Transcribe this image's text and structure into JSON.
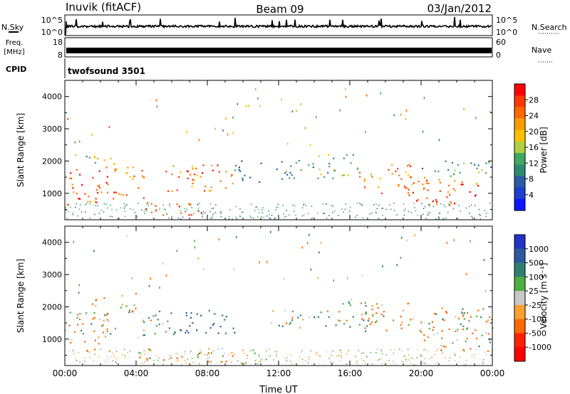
{
  "header": {
    "station": "Inuvik (fitACF)",
    "beam": "Beam 09",
    "date": "03/Jan/2012"
  },
  "strips": {
    "nsky_label": "N.Sky",
    "nsearch_label": "N.Search",
    "nsky_ticks": [
      "10^5",
      "10^0"
    ],
    "nsearch_ticks": [
      "10^5",
      "10^0"
    ],
    "freq_label": "Freq.",
    "freq_unit": "[MHz]",
    "freq_ticks": [
      "18",
      "8"
    ],
    "nave_label": "Nave",
    "nave_ticks": [
      "60",
      "0"
    ],
    "cpid_label": "CPID",
    "cpid_value": "twofsound 3501"
  },
  "power_colorbar": {
    "title": "Power [dB]",
    "ticks": [
      "28",
      "24",
      "20",
      "16",
      "12",
      "8",
      "4"
    ],
    "colors": [
      "#ff0000",
      "#ff3800",
      "#ff6a00",
      "#ff9a00",
      "#ffc000",
      "#b0d040",
      "#40a860",
      "#2f8a70",
      "#2a5aa8",
      "#1f3fd0",
      "#0a16ff"
    ]
  },
  "velocity_colorbar": {
    "title": "Velocity [m s⁻¹]",
    "ticks": [
      "1000",
      "500",
      "100",
      "25",
      "-25",
      "-100",
      "-500",
      "-1000"
    ],
    "colors": [
      "#2234c8",
      "#2b5aa0",
      "#2f8070",
      "#4cb040",
      "#c8c8c8",
      "#ffa030",
      "#ff6a00",
      "#ff2000",
      "#ff0000"
    ]
  },
  "chart_data": [
    {
      "type": "heatmap",
      "title": "Power",
      "xlabel": "",
      "ylabel": "Slant Range [km]",
      "xlim": [
        0,
        24
      ],
      "ylim": [
        180,
        4500
      ],
      "x_ticks": [
        "00:00",
        "04:00",
        "08:00",
        "12:00",
        "16:00",
        "20:00",
        "00:00"
      ],
      "y_ticks": [
        1000,
        2000,
        3000,
        4000
      ],
      "colorbar": {
        "label": "Power [dB]",
        "ticks": [
          28,
          24,
          20,
          16,
          12,
          8,
          4
        ]
      },
      "regions": [
        {
          "x": [
            0.0,
            3.0
          ],
          "y": [
            600,
            1800
          ],
          "value": 28
        },
        {
          "x": [
            0.5,
            3.0
          ],
          "y": [
            1800,
            2200
          ],
          "value": 16
        },
        {
          "x": [
            3.0,
            4.5
          ],
          "y": [
            800,
            1900
          ],
          "value": 24
        },
        {
          "x": [
            4.5,
            8.0
          ],
          "y": [
            280,
            700
          ],
          "value": 28
        },
        {
          "x": [
            5.5,
            9.5
          ],
          "y": [
            1000,
            1900
          ],
          "value": 26
        },
        {
          "x": [
            9.5,
            11.0
          ],
          "y": [
            1300,
            2000
          ],
          "value": 8
        },
        {
          "x": [
            11.5,
            14.0
          ],
          "y": [
            1400,
            2000
          ],
          "value": 10
        },
        {
          "x": [
            14.0,
            16.5
          ],
          "y": [
            1400,
            2200
          ],
          "value": 14
        },
        {
          "x": [
            16.5,
            19.5
          ],
          "y": [
            900,
            1900
          ],
          "value": 24
        },
        {
          "x": [
            19.5,
            23.5
          ],
          "y": [
            600,
            1500
          ],
          "value": 28
        },
        {
          "x": [
            20.0,
            24.0
          ],
          "y": [
            1500,
            2000
          ],
          "value": 12
        }
      ]
    },
    {
      "type": "heatmap",
      "title": "Velocity",
      "xlabel": "Time UT",
      "ylabel": "Slant Range [km]",
      "xlim": [
        0,
        24
      ],
      "ylim": [
        180,
        4500
      ],
      "x_ticks": [
        "00:00",
        "04:00",
        "08:00",
        "12:00",
        "16:00",
        "20:00",
        "00:00"
      ],
      "y_ticks": [
        1000,
        2000,
        3000,
        4000
      ],
      "colorbar": {
        "label": "Velocity [m s-1]",
        "ticks": [
          1000,
          500,
          100,
          25,
          -25,
          -100,
          -500,
          -1000
        ]
      },
      "regions": [
        {
          "x": [
            0.0,
            3.0
          ],
          "y": [
            600,
            1800
          ],
          "value": -100
        },
        {
          "x": [
            1.5,
            4.0
          ],
          "y": [
            1700,
            2400
          ],
          "value": 0
        },
        {
          "x": [
            4.0,
            6.0
          ],
          "y": [
            1000,
            1900
          ],
          "value": 100
        },
        {
          "x": [
            6.0,
            9.5
          ],
          "y": [
            1100,
            1900
          ],
          "value": 500
        },
        {
          "x": [
            4.0,
            11.0
          ],
          "y": [
            200,
            700
          ],
          "value": -100
        },
        {
          "x": [
            11.5,
            14.5
          ],
          "y": [
            1300,
            1900
          ],
          "value": 100
        },
        {
          "x": [
            14.5,
            17.0
          ],
          "y": [
            1300,
            2200
          ],
          "value": 100
        },
        {
          "x": [
            16.5,
            19.5
          ],
          "y": [
            1200,
            2200
          ],
          "value": -100
        },
        {
          "x": [
            19.5,
            24.0
          ],
          "y": [
            600,
            1800
          ],
          "value": -100
        },
        {
          "x": [
            21.0,
            24.0
          ],
          "y": [
            1500,
            2000
          ],
          "value": 100
        }
      ]
    }
  ]
}
